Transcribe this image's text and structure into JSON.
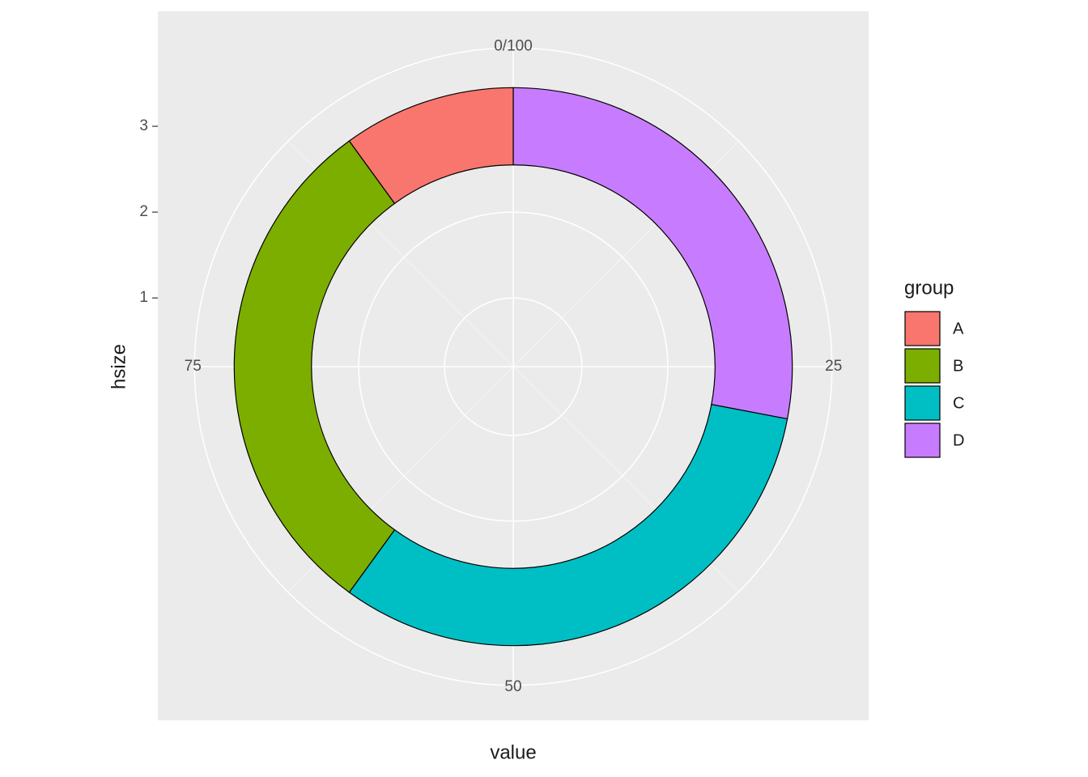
{
  "chart_data": {
    "type": "donut",
    "categories": [
      "A",
      "B",
      "C",
      "D"
    ],
    "values": [
      10,
      30,
      32,
      28
    ],
    "colors": [
      "#f8766d",
      "#7cae00",
      "#00bfc4",
      "#c77cff"
    ],
    "legend_title": "group",
    "x_label": "value",
    "y_label": "hsize",
    "xlim": [
      0,
      100
    ],
    "xticks": [
      {
        "value": 0,
        "label": "0/100"
      },
      25,
      50,
      75
    ],
    "ylim": [
      0.2,
      3.5
    ],
    "yticks": [
      1,
      2,
      3
    ],
    "ring": [
      2.55,
      3.45
    ],
    "grid": true,
    "legend_position": "right"
  }
}
